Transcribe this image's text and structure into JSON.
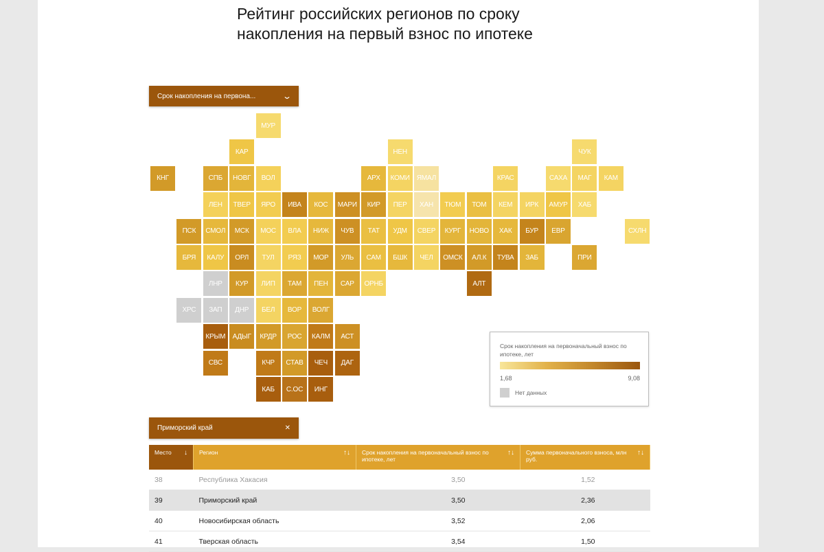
{
  "title": "Рейтинг российских регионов по сроку накопления на первый взнос по ипотеке",
  "dropdown": {
    "label": "Срок накопления на первона...",
    "icon": "chevron-down-icon"
  },
  "colors": {
    "accent": "#9b560c",
    "header": "#dfa22c",
    "no_data": "#cfcfcf"
  },
  "tiles": [
    {
      "l": "МУР",
      "r": 0,
      "c": 4,
      "k": "#f6da6e"
    },
    {
      "l": "КАР",
      "r": 1,
      "c": 3,
      "k": "#efc646"
    },
    {
      "l": "НЕН",
      "r": 1,
      "c": 9,
      "k": "#f6da6e"
    },
    {
      "l": "ЧУК",
      "r": 1,
      "c": 16,
      "k": "#f6da6e"
    },
    {
      "l": "КНГ",
      "r": 2,
      "c": 0,
      "k": "#d29a28"
    },
    {
      "l": "СПБ",
      "r": 2,
      "c": 2,
      "k": "#dba732"
    },
    {
      "l": "НОВГ",
      "r": 2,
      "c": 3,
      "k": "#e3b53a"
    },
    {
      "l": "ВОЛ",
      "r": 2,
      "c": 4,
      "k": "#f4d15a"
    },
    {
      "l": "АРХ",
      "r": 2,
      "c": 8,
      "k": "#e6b83c"
    },
    {
      "l": "КОМИ",
      "r": 2,
      "c": 9,
      "k": "#f4d462"
    },
    {
      "l": "ЯМАЛ",
      "r": 2,
      "c": 10,
      "k": "#f6e2a0"
    },
    {
      "l": "КРАС",
      "r": 2,
      "c": 13,
      "k": "#f4d462"
    },
    {
      "l": "САХА",
      "r": 2,
      "c": 15,
      "k": "#f6da6e"
    },
    {
      "l": "МАГ",
      "r": 2,
      "c": 16,
      "k": "#f4d462"
    },
    {
      "l": "КАМ",
      "r": 2,
      "c": 17,
      "k": "#f4d462"
    },
    {
      "l": "ЛЕН",
      "r": 3,
      "c": 2,
      "k": "#f4d15a"
    },
    {
      "l": "ТВЕР",
      "r": 3,
      "c": 3,
      "k": "#efc646"
    },
    {
      "l": "ЯРО",
      "r": 3,
      "c": 4,
      "k": "#f2cc50"
    },
    {
      "l": "ИВА",
      "r": 3,
      "c": 5,
      "k": "#c4841c"
    },
    {
      "l": "КОС",
      "r": 3,
      "c": 6,
      "k": "#e6b83c"
    },
    {
      "l": "МАРИ",
      "r": 3,
      "c": 7,
      "k": "#cd9024"
    },
    {
      "l": "КИР",
      "r": 3,
      "c": 8,
      "k": "#d29a28"
    },
    {
      "l": "ПЕР",
      "r": 3,
      "c": 9,
      "k": "#f4d462"
    },
    {
      "l": "ХАН",
      "r": 3,
      "c": 10,
      "k": "#f6e4ac"
    },
    {
      "l": "ТЮМ",
      "r": 3,
      "c": 11,
      "k": "#f2cc50"
    },
    {
      "l": "ТОМ",
      "r": 3,
      "c": 12,
      "k": "#eabf42"
    },
    {
      "l": "КЕМ",
      "r": 3,
      "c": 13,
      "k": "#f4d462"
    },
    {
      "l": "ИРК",
      "r": 3,
      "c": 14,
      "k": "#f4d462"
    },
    {
      "l": "АМУР",
      "r": 3,
      "c": 15,
      "k": "#efc646"
    },
    {
      "l": "ХАБ",
      "r": 3,
      "c": 16,
      "k": "#f6da6e"
    },
    {
      "l": "ПСК",
      "r": 4,
      "c": 1,
      "k": "#d29a28"
    },
    {
      "l": "СМОЛ",
      "r": 4,
      "c": 2,
      "k": "#e6b83c"
    },
    {
      "l": "МСК",
      "r": 4,
      "c": 3,
      "k": "#d29a28"
    },
    {
      "l": "МОС",
      "r": 4,
      "c": 4,
      "k": "#f4d15a"
    },
    {
      "l": "ВЛА",
      "r": 4,
      "c": 5,
      "k": "#f2cc50"
    },
    {
      "l": "НИЖ",
      "r": 4,
      "c": 6,
      "k": "#e6b83c"
    },
    {
      "l": "ЧУВ",
      "r": 4,
      "c": 7,
      "k": "#cd9024"
    },
    {
      "l": "ТАТ",
      "r": 4,
      "c": 8,
      "k": "#eabf42"
    },
    {
      "l": "УДМ",
      "r": 4,
      "c": 9,
      "k": "#efc646"
    },
    {
      "l": "СВЕР",
      "r": 4,
      "c": 10,
      "k": "#f4d462"
    },
    {
      "l": "КУРГ",
      "r": 4,
      "c": 11,
      "k": "#e3b53a"
    },
    {
      "l": "НОВО",
      "r": 4,
      "c": 12,
      "k": "#e3b53a"
    },
    {
      "l": "ХАК",
      "r": 4,
      "c": 13,
      "k": "#e6b83c"
    },
    {
      "l": "БУР",
      "r": 4,
      "c": 14,
      "k": "#c4841c"
    },
    {
      "l": "ЕВР",
      "r": 4,
      "c": 15,
      "k": "#d9a530"
    },
    {
      "l": "СХЛН",
      "r": 4,
      "c": 18,
      "k": "#f6da6e"
    },
    {
      "l": "БРЯ",
      "r": 5,
      "c": 1,
      "k": "#e6b83c"
    },
    {
      "l": "КАЛУ",
      "r": 5,
      "c": 2,
      "k": "#efc646"
    },
    {
      "l": "ОРЛ",
      "r": 5,
      "c": 3,
      "k": "#c98c20"
    },
    {
      "l": "ТУЛ",
      "r": 5,
      "c": 4,
      "k": "#f4d462"
    },
    {
      "l": "РЯЗ",
      "r": 5,
      "c": 5,
      "k": "#f2cc50"
    },
    {
      "l": "МОР",
      "r": 5,
      "c": 6,
      "k": "#d29a28"
    },
    {
      "l": "УЛЬ",
      "r": 5,
      "c": 7,
      "k": "#dba732"
    },
    {
      "l": "САМ",
      "r": 5,
      "c": 8,
      "k": "#eabf42"
    },
    {
      "l": "БШК",
      "r": 5,
      "c": 9,
      "k": "#e6b83c"
    },
    {
      "l": "ЧЕЛ",
      "r": 5,
      "c": 10,
      "k": "#f4d462"
    },
    {
      "l": "ОМСК",
      "r": 5,
      "c": 11,
      "k": "#cd9024"
    },
    {
      "l": "АЛ.К",
      "r": 5,
      "c": 12,
      "k": "#d29a28"
    },
    {
      "l": "ТУВА",
      "r": 5,
      "c": 13,
      "k": "#c4841c"
    },
    {
      "l": "ЗАБ",
      "r": 5,
      "c": 14,
      "k": "#e3b53a"
    },
    {
      "l": "ПРИ",
      "r": 5,
      "c": 16,
      "k": "#dba732"
    },
    {
      "l": "ЛНР",
      "r": 6,
      "c": 2,
      "k": "#cfcfcf"
    },
    {
      "l": "КУР",
      "r": 6,
      "c": 3,
      "k": "#d29a28"
    },
    {
      "l": "ЛИП",
      "r": 6,
      "c": 4,
      "k": "#f4d462"
    },
    {
      "l": "ТАМ",
      "r": 6,
      "c": 5,
      "k": "#dba732"
    },
    {
      "l": "ПЕН",
      "r": 6,
      "c": 6,
      "k": "#e3b53a"
    },
    {
      "l": "САР",
      "r": 6,
      "c": 7,
      "k": "#dba732"
    },
    {
      "l": "ОРНБ",
      "r": 6,
      "c": 8,
      "k": "#f4d462"
    },
    {
      "l": "АЛТ",
      "r": 6,
      "c": 12,
      "k": "#b06a12"
    },
    {
      "l": "ХРС",
      "r": 7,
      "c": 1,
      "k": "#cfcfcf"
    },
    {
      "l": "ЗАП",
      "r": 7,
      "c": 2,
      "k": "#cfcfcf"
    },
    {
      "l": "ДНР",
      "r": 7,
      "c": 3,
      "k": "#cfcfcf"
    },
    {
      "l": "БЕЛ",
      "r": 7,
      "c": 4,
      "k": "#f4d462"
    },
    {
      "l": "ВОР",
      "r": 7,
      "c": 5,
      "k": "#e6b83c"
    },
    {
      "l": "ВОЛГ",
      "r": 7,
      "c": 6,
      "k": "#dba732"
    },
    {
      "l": "КРЫМ",
      "r": 8,
      "c": 2,
      "k": "#a85e0e"
    },
    {
      "l": "АДЫГ",
      "r": 8,
      "c": 3,
      "k": "#c98c20"
    },
    {
      "l": "КРДР",
      "r": 8,
      "c": 4,
      "k": "#d29a28"
    },
    {
      "l": "РОС",
      "r": 8,
      "c": 5,
      "k": "#d9a530"
    },
    {
      "l": "КАЛМ",
      "r": 8,
      "c": 6,
      "k": "#c07a18"
    },
    {
      "l": "АСТ",
      "r": 8,
      "c": 7,
      "k": "#cd9024"
    },
    {
      "l": "СВС",
      "r": 9,
      "c": 2,
      "k": "#c07a18"
    },
    {
      "l": "КЧР",
      "r": 9,
      "c": 4,
      "k": "#c07a18"
    },
    {
      "l": "СТАВ",
      "r": 9,
      "c": 5,
      "k": "#d29a28"
    },
    {
      "l": "ЧЕЧ",
      "r": 9,
      "c": 6,
      "k": "#a85e0e"
    },
    {
      "l": "ДАГ",
      "r": 9,
      "c": 7,
      "k": "#ad6410"
    },
    {
      "l": "КАБ",
      "r": 10,
      "c": 4,
      "k": "#a85e0e"
    },
    {
      "l": "С.ОС",
      "r": 10,
      "c": 5,
      "k": "#b8721a"
    },
    {
      "l": "ИНГ",
      "r": 10,
      "c": 6,
      "k": "#a85e0e"
    }
  ],
  "legend": {
    "title": "Срок накопления на первоначальный взнос по ипотеке, лет",
    "min": "1,68",
    "max": "9,08",
    "no_data": "Нет данных"
  },
  "selected_chip": {
    "label": "Приморский край",
    "icon": "close-icon"
  },
  "table": {
    "headers": [
      "Место",
      "Регион",
      "Срок накопления на первоначальный взнос по ипотеке, лет",
      "Сумма первоначального взноса, млн руб."
    ],
    "sort_icons": [
      "↓",
      "↑↓",
      "↑↓",
      "↑↓"
    ],
    "rows": [
      [
        "38",
        "Республика Хакасия",
        "3,50",
        "1,52"
      ],
      [
        "39",
        "Приморский край",
        "3,50",
        "2,36"
      ],
      [
        "40",
        "Новосибирская область",
        "3,52",
        "2,06"
      ],
      [
        "41",
        "Тверская область",
        "3,54",
        "1,50"
      ]
    ]
  }
}
